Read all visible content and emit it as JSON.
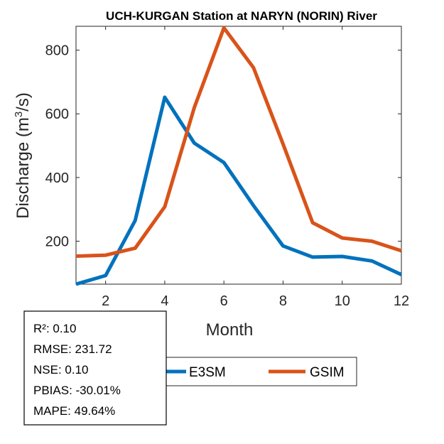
{
  "chart_data": {
    "type": "line",
    "title": "UCH-KURGAN  Station at  NARYN (NORIN)  River",
    "xlabel": "Month",
    "ylabel_prefix": "Discharge (m",
    "ylabel_sup": "3",
    "ylabel_suffix": "/s)",
    "xlim": [
      1,
      12
    ],
    "ylim": [
      65,
      875
    ],
    "xticks": [
      2,
      4,
      6,
      8,
      10,
      12
    ],
    "yticks": [
      200,
      400,
      600,
      800
    ],
    "x": [
      1,
      2,
      3,
      4,
      5,
      6,
      7,
      8,
      9,
      10,
      11,
      12
    ],
    "series": [
      {
        "name": "E3SM",
        "color": "#0072BD",
        "values": [
          65,
          92,
          265,
          652,
          508,
          447,
          312,
          185,
          150,
          152,
          138,
          95
        ]
      },
      {
        "name": "GSIM",
        "color": "#D95319",
        "values": [
          153,
          156,
          178,
          308,
          620,
          870,
          745,
          505,
          258,
          210,
          200,
          170
        ]
      }
    ],
    "legend_position": "bottom"
  },
  "stats": [
    "R²: 0.10",
    "RMSE: 231.72",
    "NSE: 0.10",
    "PBIAS: -30.01%",
    "MAPE: 49.64%"
  ]
}
